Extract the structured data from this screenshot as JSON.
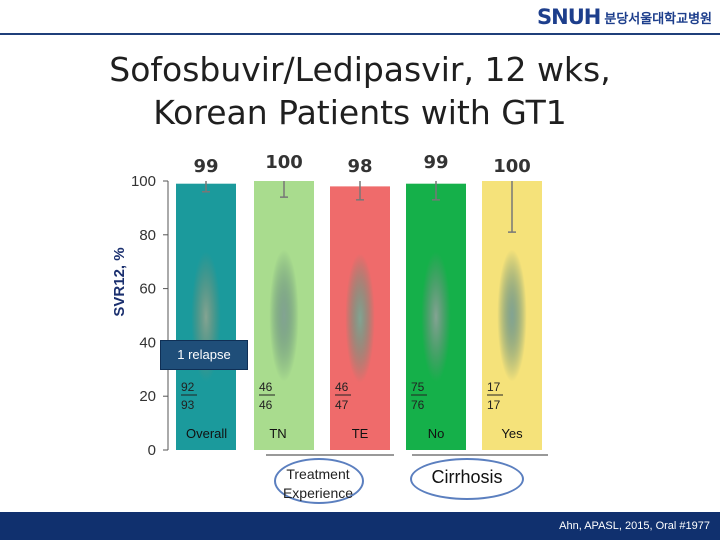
{
  "header": {
    "logo_mark": "SNUH",
    "hospital_name": "분당서울대학교병원"
  },
  "slide": {
    "title_lines": [
      "Sofosbuvir/Ledipasvir, 12 wks,",
      "Korean Patients with GT1"
    ],
    "relapse_note": "1 relapse",
    "group_labels": {
      "treatment_experience": [
        "Treatment",
        "Experience"
      ],
      "cirrhosis": "Cirrhosis"
    },
    "citation": "Ahn, APASL, 2015, Oral #1977"
  },
  "chart_data": {
    "type": "bar",
    "title": "",
    "xlabel": "",
    "ylabel": "SVR12, %",
    "ylim": [
      0,
      100
    ],
    "yticks": [
      0,
      20,
      40,
      60,
      80,
      100
    ],
    "grid": false,
    "categories": [
      "Overall",
      "TN",
      "TE",
      "No",
      "Yes"
    ],
    "values": [
      99,
      100,
      98,
      99,
      100
    ],
    "value_labels": [
      "99",
      "100",
      "98",
      "99",
      "100"
    ],
    "error_lower": [
      96,
      94,
      93,
      93,
      81
    ],
    "error_upper": [
      100,
      100,
      100,
      100,
      100
    ],
    "fractions": [
      {
        "numerator": "92",
        "denominator": "93"
      },
      {
        "numerator": "46",
        "denominator": "46"
      },
      {
        "numerator": "46",
        "denominator": "47"
      },
      {
        "numerator": "75",
        "denominator": "76"
      },
      {
        "numerator": "17",
        "denominator": "17"
      }
    ],
    "colors": [
      "#1b9a9c",
      "#a9dc8e",
      "#ef6b6b",
      "#15b04a",
      "#f5e27a"
    ]
  }
}
